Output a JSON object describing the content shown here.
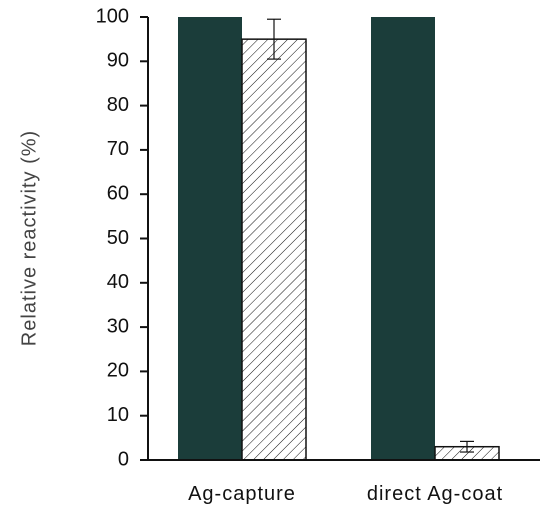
{
  "chart_data": {
    "type": "bar",
    "title": "",
    "xlabel": "",
    "ylabel": "Relative reactivity (%)",
    "ylim": [
      0,
      100
    ],
    "yticks": [
      0,
      10,
      20,
      30,
      40,
      50,
      60,
      70,
      80,
      90,
      100
    ],
    "yticks_text": [
      "0",
      "10",
      "20",
      "30",
      "40",
      "50",
      "60",
      "70",
      "80",
      "90",
      "100"
    ],
    "categories": [
      "Ag-capture",
      "direct Ag-coat"
    ],
    "grid": false,
    "legend": "none",
    "series": [
      {
        "values": [
          100,
          100
        ],
        "errors": [
          0,
          0
        ],
        "fill": "solid",
        "color": "#1b3d3a"
      },
      {
        "values": [
          95,
          3
        ],
        "errors": [
          4.5,
          1.2
        ],
        "fill": "diagonal-hatch",
        "color": "#111111"
      }
    ]
  }
}
